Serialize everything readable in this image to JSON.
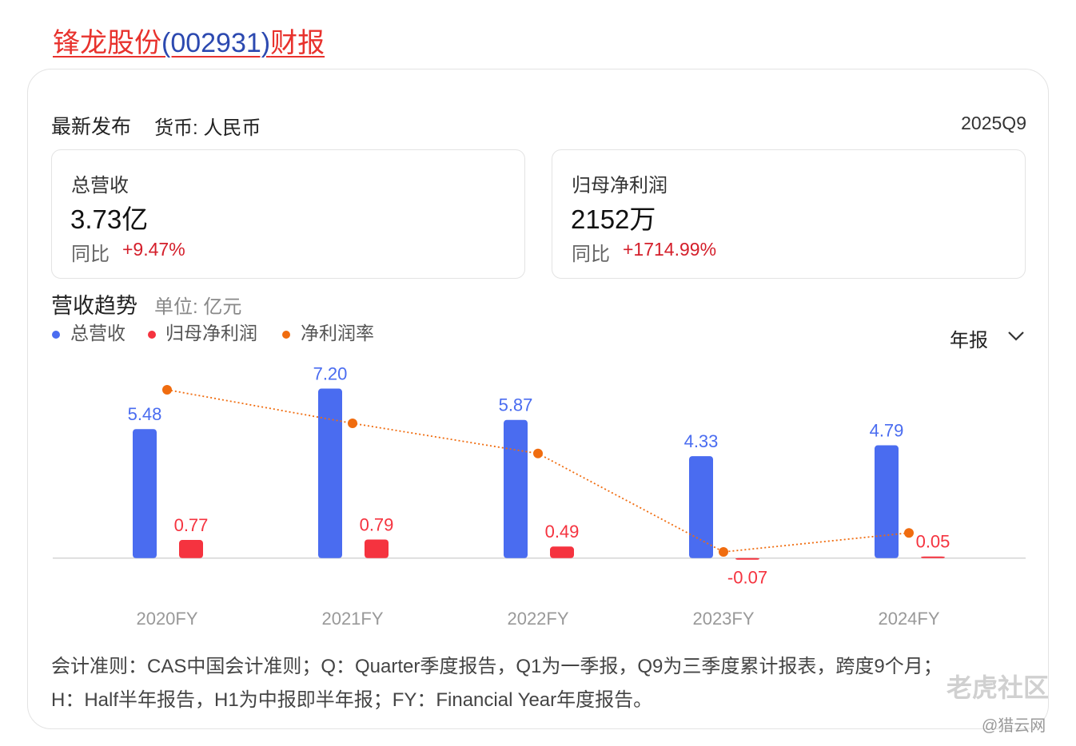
{
  "header": {
    "title_parts": [
      "锋龙股份",
      "(002931)",
      "财报"
    ]
  },
  "summary": {
    "label": "最新发布",
    "currency": "货币: 人民币",
    "period": "2025Q9",
    "metrics": [
      {
        "label": "总营收",
        "value": "3.73亿",
        "yoy_label": "同比",
        "yoy": "+9.47%"
      },
      {
        "label": "归母净利润",
        "value": "2152万",
        "yoy_label": "同比",
        "yoy": "+1714.99%"
      }
    ]
  },
  "trend": {
    "title": "营收趋势",
    "unit": "单位: 亿元",
    "period_select": "年报"
  },
  "chart_data": {
    "type": "bar",
    "categories": [
      "2020FY",
      "2021FY",
      "2022FY",
      "2023FY",
      "2024FY"
    ],
    "ylim": [
      -1.4,
      8.1
    ],
    "y2lim": [
      -4,
      16
    ],
    "series": [
      {
        "name": "总营收",
        "color": "#4a6cf0",
        "values": [
          5.48,
          7.2,
          5.87,
          4.33,
          4.79
        ],
        "value_labels": [
          "5.48",
          "7.20",
          "5.87",
          "4.33",
          "4.79"
        ]
      },
      {
        "name": "归母净利润",
        "color": "#f5333f",
        "values": [
          0.77,
          0.79,
          0.49,
          -0.07,
          0.05
        ]
      },
      {
        "name": "净利润率",
        "color": "#f06c0f",
        "type": "line",
        "axis": "y2",
        "values": [
          14.0,
          11.0,
          8.3,
          -0.5,
          1.2
        ]
      }
    ]
  },
  "footnote": [
    "会计准则：CAS中国会计准则；Q：Quarter季度报告，Q1为一季报，Q9为三季度累计报表，跨度9个月；",
    "H：Half半年报告，H1为中报即半年报；FY：Financial Year年度报告。"
  ],
  "watermark": {
    "brand": "老虎社区",
    "source": "@猎云网"
  }
}
